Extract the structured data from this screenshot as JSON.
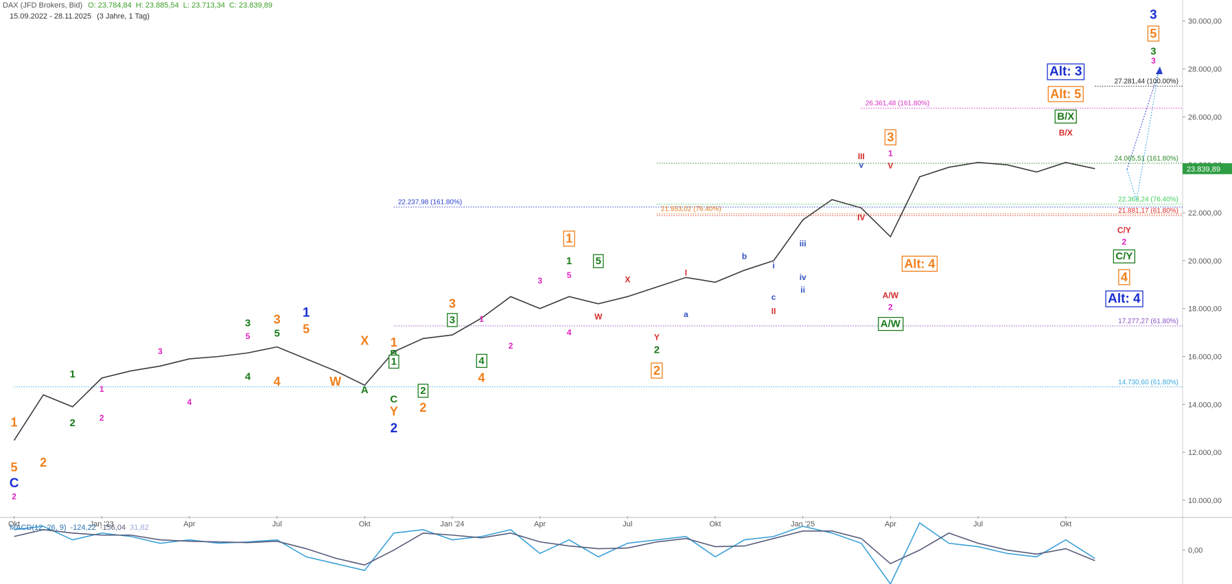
{
  "chart_data": [
    {
      "type": "line",
      "title": "DAX (JFD Brokers, Bid)",
      "stats": [
        "O: 23.784,84",
        "H: 23.885,54",
        "L: 23.713,34",
        "C: 23.839,89"
      ],
      "subtitle": "15.09.2022 - 28.11.2025",
      "period": "(3 Jahre, 1 Tag)",
      "x": [
        "2022-10",
        "2022-11",
        "2022-12",
        "2023-01",
        "2023-02",
        "2023-03",
        "2023-04",
        "2023-05",
        "2023-06",
        "2023-07",
        "2023-08",
        "2023-09",
        "2023-10",
        "2023-11",
        "2023-12",
        "2024-01",
        "2024-02",
        "2024-03",
        "2024-04",
        "2024-05",
        "2024-06",
        "2024-07",
        "2024-08",
        "2024-09",
        "2024-10",
        "2024-11",
        "2024-12",
        "2025-01",
        "2025-02",
        "2025-03",
        "2025-04",
        "2025-05",
        "2025-06",
        "2025-07",
        "2025-08",
        "2025-09",
        "2025-10",
        "2025-11"
      ],
      "series": [
        {
          "name": "DAX",
          "color": "#3a3a3a",
          "values": [
            12500,
            14400,
            13900,
            15100,
            15400,
            15600,
            15900,
            16000,
            16150,
            16400,
            15900,
            15400,
            14800,
            16200,
            16750,
            16900,
            17600,
            18500,
            18000,
            18500,
            18200,
            18500,
            18900,
            19300,
            19100,
            19600,
            20000,
            21700,
            22550,
            22200,
            21000,
            23500,
            23900,
            24100,
            24000,
            23700,
            24100,
            23839.89
          ]
        }
      ],
      "last_price": {
        "value": 23839.89,
        "label": "23.839,89"
      },
      "xlim": [
        "2022-09",
        "2026-02"
      ],
      "xticks": [
        {
          "value": "2022-10",
          "label": "Okt"
        },
        {
          "value": "2023-01",
          "label": "Jan '23"
        },
        {
          "value": "2023-04",
          "label": "Apr"
        },
        {
          "value": "2023-07",
          "label": "Jul"
        },
        {
          "value": "2023-10",
          "label": "Okt"
        },
        {
          "value": "2024-01",
          "label": "Jan '24"
        },
        {
          "value": "2024-04",
          "label": "Apr"
        },
        {
          "value": "2024-07",
          "label": "Jul"
        },
        {
          "value": "2024-10",
          "label": "Okt"
        },
        {
          "value": "2025-01",
          "label": "Jan '25"
        },
        {
          "value": "2025-04",
          "label": "Apr"
        },
        {
          "value": "2025-07",
          "label": "Jul"
        },
        {
          "value": "2025-10",
          "label": "Okt"
        }
      ],
      "ylim": [
        9340,
        30880
      ],
      "yticks": [
        {
          "value": 10000,
          "label": "10.000,00"
        },
        {
          "value": 12000,
          "label": "12.000,00"
        },
        {
          "value": 14000,
          "label": "14.000,00"
        },
        {
          "value": 16000,
          "label": "16.000,00"
        },
        {
          "value": 18000,
          "label": "18.000,00"
        },
        {
          "value": 20000,
          "label": "20.000,00"
        },
        {
          "value": 22000,
          "label": "22.000,00"
        },
        {
          "value": 24000,
          "label": "24.000,00"
        },
        {
          "value": 26000,
          "label": "26.000,00"
        },
        {
          "value": 28000,
          "label": "28.000,00"
        },
        {
          "value": 30000,
          "label": "30.000,00"
        }
      ],
      "grid": false,
      "levels": [
        {
          "value": 27281.44,
          "label": "27.281,44 (100.00%)",
          "color": "#222222",
          "start": "2025-11",
          "side": "end"
        },
        {
          "value": 26361.48,
          "label": "26.361,48 (161.80%)",
          "color": "#d62fc4",
          "start": "2025-03",
          "side": "start"
        },
        {
          "value": 24065.51,
          "label": "24.065,51 (161.80%)",
          "color": "#2a8a2a",
          "start": "2024-08",
          "side": "end"
        },
        {
          "value": 22363.24,
          "label": "22.363,24 (76.40%)",
          "color": "#3fcf5a",
          "start": "2024-08",
          "side": "end"
        },
        {
          "value": 22237.98,
          "label": "22.237,98 (161.80%)",
          "color": "#2a40d0",
          "start": "2023-11",
          "side": "start"
        },
        {
          "value": 21953.02,
          "label": "21.953,02 (76.40%)",
          "color": "#e07a20",
          "start": "2024-08",
          "side": "start"
        },
        {
          "value": 21881.17,
          "label": "21.881,17 (61.80%)",
          "color": "#e03030",
          "start": "2024-08",
          "side": "end"
        },
        {
          "value": 17277.27,
          "label": "17.277,27 (61.80%)",
          "color": "#8a4fc8",
          "start": "2023-11",
          "side": "end"
        },
        {
          "value": 14730.6,
          "label": "14.730,60 (61.80%)",
          "color": "#3aa8e0",
          "start": "2022-10",
          "side": "end"
        }
      ],
      "annotations": [
        {
          "text": "C",
          "x": "2022-10",
          "y": 10686,
          "color": "#1a2fd0",
          "box": false
        },
        {
          "text": "5",
          "x": "2022-10",
          "y": 11343,
          "color": "#f07f1a",
          "box": false
        },
        {
          "text": "2",
          "x": "2022-10",
          "y": 10130,
          "color": "#e020c0",
          "box": false
        },
        {
          "text": "1",
          "x": "2022-10",
          "y": 13210,
          "color": "#f07f1a",
          "box": false
        },
        {
          "text": "2",
          "x": "2022-11",
          "y": 11540,
          "color": "#f07f1a",
          "box": false
        },
        {
          "text": "1",
          "x": "2022-12",
          "y": 15244,
          "color": "#1a7a1a",
          "box": false
        },
        {
          "text": "1",
          "x": "2023-01",
          "y": 14621,
          "color": "#e020c0",
          "box": false
        },
        {
          "text": "2",
          "x": "2022-12",
          "y": 13210,
          "color": "#1a7a1a",
          "box": false
        },
        {
          "text": "2",
          "x": "2023-01",
          "y": 13407,
          "color": "#e020c0",
          "box": false
        },
        {
          "text": "3",
          "x": "2023-03",
          "y": 16195,
          "color": "#e020c0",
          "box": false
        },
        {
          "text": "4",
          "x": "2023-04",
          "y": 14064,
          "color": "#e020c0",
          "box": false
        },
        {
          "text": "3",
          "x": "2023-06",
          "y": 17376,
          "color": "#1a7a1a",
          "box": false
        },
        {
          "text": "5",
          "x": "2023-06",
          "y": 16818,
          "color": "#e020c0",
          "box": false
        },
        {
          "text": "3",
          "x": "2023-07",
          "y": 17507,
          "color": "#f07f1a",
          "box": false
        },
        {
          "text": "5",
          "x": "2023-07",
          "y": 16949,
          "color": "#1a7a1a",
          "box": false
        },
        {
          "text": "4",
          "x": "2023-06",
          "y": 15146,
          "color": "#1a7a1a",
          "box": false
        },
        {
          "text": "4",
          "x": "2023-07",
          "y": 14916,
          "color": "#f07f1a",
          "box": false
        },
        {
          "text": "1",
          "x": "2023-08",
          "y": 17802,
          "color": "#1a2fd0",
          "box": false
        },
        {
          "text": "5",
          "x": "2023-08",
          "y": 17114,
          "color": "#f07f1a",
          "box": false
        },
        {
          "text": "X",
          "x": "2023-10",
          "y": 16621,
          "color": "#f07f1a",
          "box": false
        },
        {
          "text": "W",
          "x": "2023-09",
          "y": 14916,
          "color": "#f07f1a",
          "box": false
        },
        {
          "text": "B",
          "x": "2023-11",
          "y": 16097,
          "color": "#1a7a1a",
          "box": false
        },
        {
          "text": "A",
          "x": "2023-10",
          "y": 14588,
          "color": "#1a7a1a",
          "box": false
        },
        {
          "text": "1",
          "x": "2023-11",
          "y": 16556,
          "color": "#f07f1a",
          "box": false
        },
        {
          "text": "1",
          "x": "2023-11",
          "y": 15769,
          "color": "#1a7a1a",
          "box": true
        },
        {
          "text": "C",
          "x": "2023-11",
          "y": 14195,
          "color": "#1a7a1a",
          "box": false
        },
        {
          "text": "Y",
          "x": "2023-11",
          "y": 13670,
          "color": "#f07f1a",
          "box": false
        },
        {
          "text": "2",
          "x": "2023-12",
          "y": 14555,
          "color": "#1a7a1a",
          "box": true
        },
        {
          "text": "2",
          "x": "2023-12",
          "y": 13834,
          "color": "#f07f1a",
          "box": false
        },
        {
          "text": "2",
          "x": "2023-11",
          "y": 12982,
          "color": "#1a2fd0",
          "box": false
        },
        {
          "text": "3",
          "x": "2024-01",
          "y": 18163,
          "color": "#f07f1a",
          "box": false
        },
        {
          "text": "3",
          "x": "2024-01",
          "y": 17507,
          "color": "#1a7a1a",
          "box": true
        },
        {
          "text": "1",
          "x": "2024-02",
          "y": 17540,
          "color": "#e020c0",
          "box": false
        },
        {
          "text": "2",
          "x": "2024-03",
          "y": 16425,
          "color": "#e020c0",
          "box": false
        },
        {
          "text": "4",
          "x": "2024-02",
          "y": 15802,
          "color": "#1a7a1a",
          "box": true
        },
        {
          "text": "4",
          "x": "2024-02",
          "y": 15080,
          "color": "#f07f1a",
          "box": false
        },
        {
          "text": "3",
          "x": "2024-04",
          "y": 19147,
          "color": "#e020c0",
          "box": false
        },
        {
          "text": "4",
          "x": "2024-05",
          "y": 16982,
          "color": "#e020c0",
          "box": false
        },
        {
          "text": "1",
          "x": "2024-05",
          "y": 20884,
          "color": "#f07f1a",
          "box": true
        },
        {
          "text": "1",
          "x": "2024-05",
          "y": 19967,
          "color": "#1a7a1a",
          "box": false
        },
        {
          "text": "5",
          "x": "2024-06",
          "y": 19967,
          "color": "#1a7a1a",
          "box": true
        },
        {
          "text": "5",
          "x": "2024-05",
          "y": 19377,
          "color": "#e020c0",
          "box": false
        },
        {
          "text": "X",
          "x": "2024-07",
          "y": 19180,
          "color": "#d42a2a",
          "box": false
        },
        {
          "text": "W",
          "x": "2024-06",
          "y": 17638,
          "color": "#d42a2a",
          "box": false
        },
        {
          "text": "Y",
          "x": "2024-08",
          "y": 16785,
          "color": "#d42a2a",
          "box": false
        },
        {
          "text": "2",
          "x": "2024-08",
          "y": 16261,
          "color": "#1a7a1a",
          "box": false
        },
        {
          "text": "2",
          "x": "2024-08",
          "y": 15376,
          "color": "#f07f1a",
          "box": true
        },
        {
          "text": "I",
          "x": "2024-09",
          "y": 19475,
          "color": "#d42a2a",
          "box": false
        },
        {
          "text": "a",
          "x": "2024-09",
          "y": 17736,
          "color": "#3050c0",
          "box": false
        },
        {
          "text": "b",
          "x": "2024-11",
          "y": 20163,
          "color": "#3050c0",
          "box": false
        },
        {
          "text": "i",
          "x": "2024-12",
          "y": 19770,
          "color": "#3050c0",
          "box": false
        },
        {
          "text": "c",
          "x": "2024-12",
          "y": 18458,
          "color": "#3050c0",
          "box": false
        },
        {
          "text": "ii",
          "x": "2025-01",
          "y": 18753,
          "color": "#3050c0",
          "box": false
        },
        {
          "text": "II",
          "x": "2024-12",
          "y": 17868,
          "color": "#d42a2a",
          "box": false
        },
        {
          "text": "iii",
          "x": "2025-01",
          "y": 20687,
          "color": "#3050c0",
          "box": false
        },
        {
          "text": "iv",
          "x": "2025-01",
          "y": 19278,
          "color": "#3050c0",
          "box": false
        },
        {
          "text": "III",
          "x": "2025-03",
          "y": 24327,
          "color": "#d42a2a",
          "box": false
        },
        {
          "text": "v",
          "x": "2025-03",
          "y": 23967,
          "color": "#3050c0",
          "box": false
        },
        {
          "text": "IV",
          "x": "2025-03",
          "y": 21770,
          "color": "#d42a2a",
          "box": false
        },
        {
          "text": "V",
          "x": "2025-04",
          "y": 23934,
          "color": "#d42a2a",
          "box": false
        },
        {
          "text": "3",
          "x": "2025-04",
          "y": 25114,
          "color": "#f07f1a",
          "box": true
        },
        {
          "text": "1",
          "x": "2025-04",
          "y": 24458,
          "color": "#e020c0",
          "box": false
        },
        {
          "text": "A/W",
          "x": "2025-04",
          "y": 18523,
          "color": "#d42a2a",
          "box": false
        },
        {
          "text": "2",
          "x": "2025-04",
          "y": 18032,
          "color": "#e020c0",
          "box": false
        },
        {
          "text": "A/W",
          "x": "2025-04",
          "y": 17343,
          "color": "#1a7a1a",
          "box": true
        },
        {
          "text": "Alt: 4",
          "x": "2025-05",
          "y": 19836,
          "color": "#f07f1a",
          "box": true
        },
        {
          "text": "B/X",
          "x": "2025-10",
          "y": 25311,
          "color": "#d42a2a",
          "box": false
        },
        {
          "text": "B/X",
          "x": "2025-10",
          "y": 26000,
          "color": "#1a7a1a",
          "box": true
        },
        {
          "text": "Alt: 5",
          "x": "2025-10",
          "y": 26918,
          "color": "#f07f1a",
          "box": true
        },
        {
          "text": "Alt: 3",
          "x": "2025-10",
          "y": 27869,
          "color": "#1a2fd0",
          "box": true
        },
        {
          "text": "C/Y",
          "x": "2025-12",
          "y": 21245,
          "color": "#d42a2a",
          "box": false
        },
        {
          "text": "2",
          "x": "2025-12",
          "y": 20753,
          "color": "#e020c0",
          "box": false
        },
        {
          "text": "C/Y",
          "x": "2025-12",
          "y": 20163,
          "color": "#1a7a1a",
          "box": true
        },
        {
          "text": "4",
          "x": "2025-12",
          "y": 19278,
          "color": "#f07f1a",
          "box": true
        },
        {
          "text": "Alt: 4",
          "x": "2025-12",
          "y": 18392,
          "color": "#1a2fd0",
          "box": true
        },
        {
          "text": "3",
          "x": "2026-01",
          "y": 30230,
          "color": "#1a2fd0",
          "box": false
        },
        {
          "text": "5",
          "x": "2026-01",
          "y": 29443,
          "color": "#f07f1a",
          "box": true
        },
        {
          "text": "3",
          "x": "2026-01",
          "y": 28721,
          "color": "#1a7a1a",
          "box": false
        },
        {
          "text": "3",
          "x": "2026-01",
          "y": 28328,
          "color": "#e020c0",
          "box": false
        }
      ]
    },
    {
      "type": "line",
      "title": "MACD(12, 26, 9)",
      "stats": [
        {
          "label": "-124,22",
          "color": "#2a6fb0"
        },
        {
          "label": "-156,04",
          "color": "#555b7a"
        },
        {
          "label": "31,82",
          "color": "#9aa8d8"
        }
      ],
      "x": [
        "2022-10",
        "2022-11",
        "2022-12",
        "2023-01",
        "2023-02",
        "2023-03",
        "2023-04",
        "2023-05",
        "2023-06",
        "2023-07",
        "2023-08",
        "2023-09",
        "2023-10",
        "2023-11",
        "2023-12",
        "2024-01",
        "2024-02",
        "2024-03",
        "2024-04",
        "2024-05",
        "2024-06",
        "2024-07",
        "2024-08",
        "2024-09",
        "2024-10",
        "2024-11",
        "2024-12",
        "2025-01",
        "2025-02",
        "2025-03",
        "2025-04",
        "2025-05",
        "2025-06",
        "2025-07",
        "2025-08",
        "2025-09",
        "2025-10",
        "2025-11"
      ],
      "series": [
        {
          "name": "MACD",
          "color": "#3aa0d8",
          "values": [
            300,
            350,
            150,
            250,
            200,
            100,
            150,
            100,
            120,
            150,
            -100,
            -200,
            -300,
            250,
            300,
            150,
            200,
            300,
            -50,
            150,
            -100,
            100,
            150,
            200,
            -100,
            150,
            200,
            350,
            250,
            100,
            -500,
            400,
            100,
            50,
            -50,
            -100,
            150,
            -124.22
          ]
        },
        {
          "name": "Signal",
          "color": "#555b7a",
          "values": [
            200,
            300,
            250,
            220,
            220,
            150,
            130,
            120,
            110,
            130,
            20,
            -120,
            -220,
            0,
            250,
            220,
            180,
            250,
            120,
            60,
            20,
            30,
            120,
            170,
            50,
            60,
            170,
            280,
            280,
            170,
            -200,
            0,
            250,
            100,
            0,
            -60,
            20,
            -156.04
          ]
        }
      ],
      "xlim": [
        "2022-09",
        "2026-02"
      ],
      "ylim": [
        -500,
        450
      ],
      "yticks": [
        {
          "value": 0,
          "label": "0,00"
        }
      ]
    }
  ]
}
